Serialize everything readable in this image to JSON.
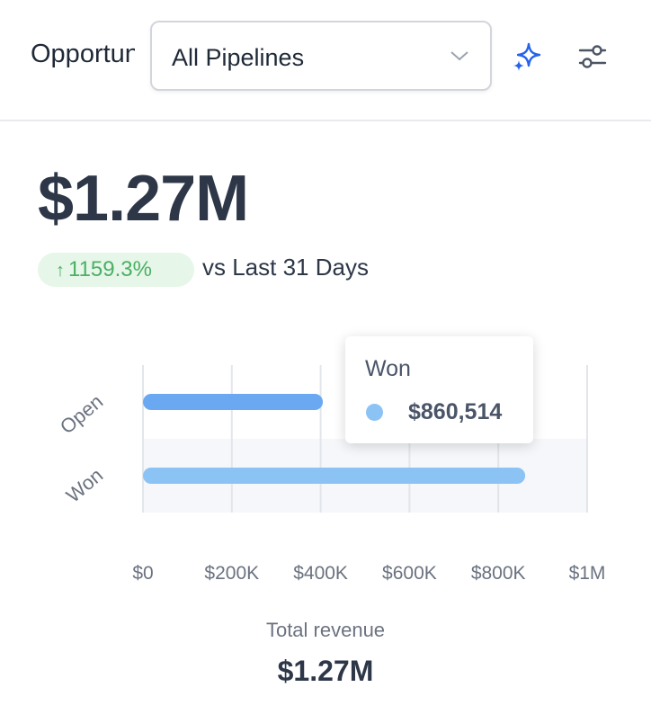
{
  "header": {
    "title": "Opportunities",
    "pipeline_select": "All Pipelines"
  },
  "summary": {
    "value": "$1.27M",
    "change": "1159.3%",
    "change_direction": "up",
    "comparison": "vs Last 31 Days"
  },
  "tooltip": {
    "title": "Won",
    "value": "$860,514"
  },
  "footer": {
    "total_label": "Total revenue",
    "total_value": "$1.27M"
  },
  "colors": {
    "open_bar": "#6aa9f2",
    "won_bar": "#8cc3f5",
    "positive": "#4caf63",
    "icon_accent": "#2563eb"
  },
  "chart_data": {
    "type": "bar",
    "orientation": "horizontal",
    "categories": [
      "Open",
      "Won"
    ],
    "values": [
      405000,
      860514
    ],
    "xlim": [
      0,
      1000000
    ],
    "ticks": [
      0,
      200000,
      400000,
      600000,
      800000,
      1000000
    ],
    "tick_labels": [
      "$0",
      "$200K",
      "$400K",
      "$600K",
      "$800K",
      "$1M"
    ],
    "highlighted_category": "Won",
    "grid": true
  }
}
